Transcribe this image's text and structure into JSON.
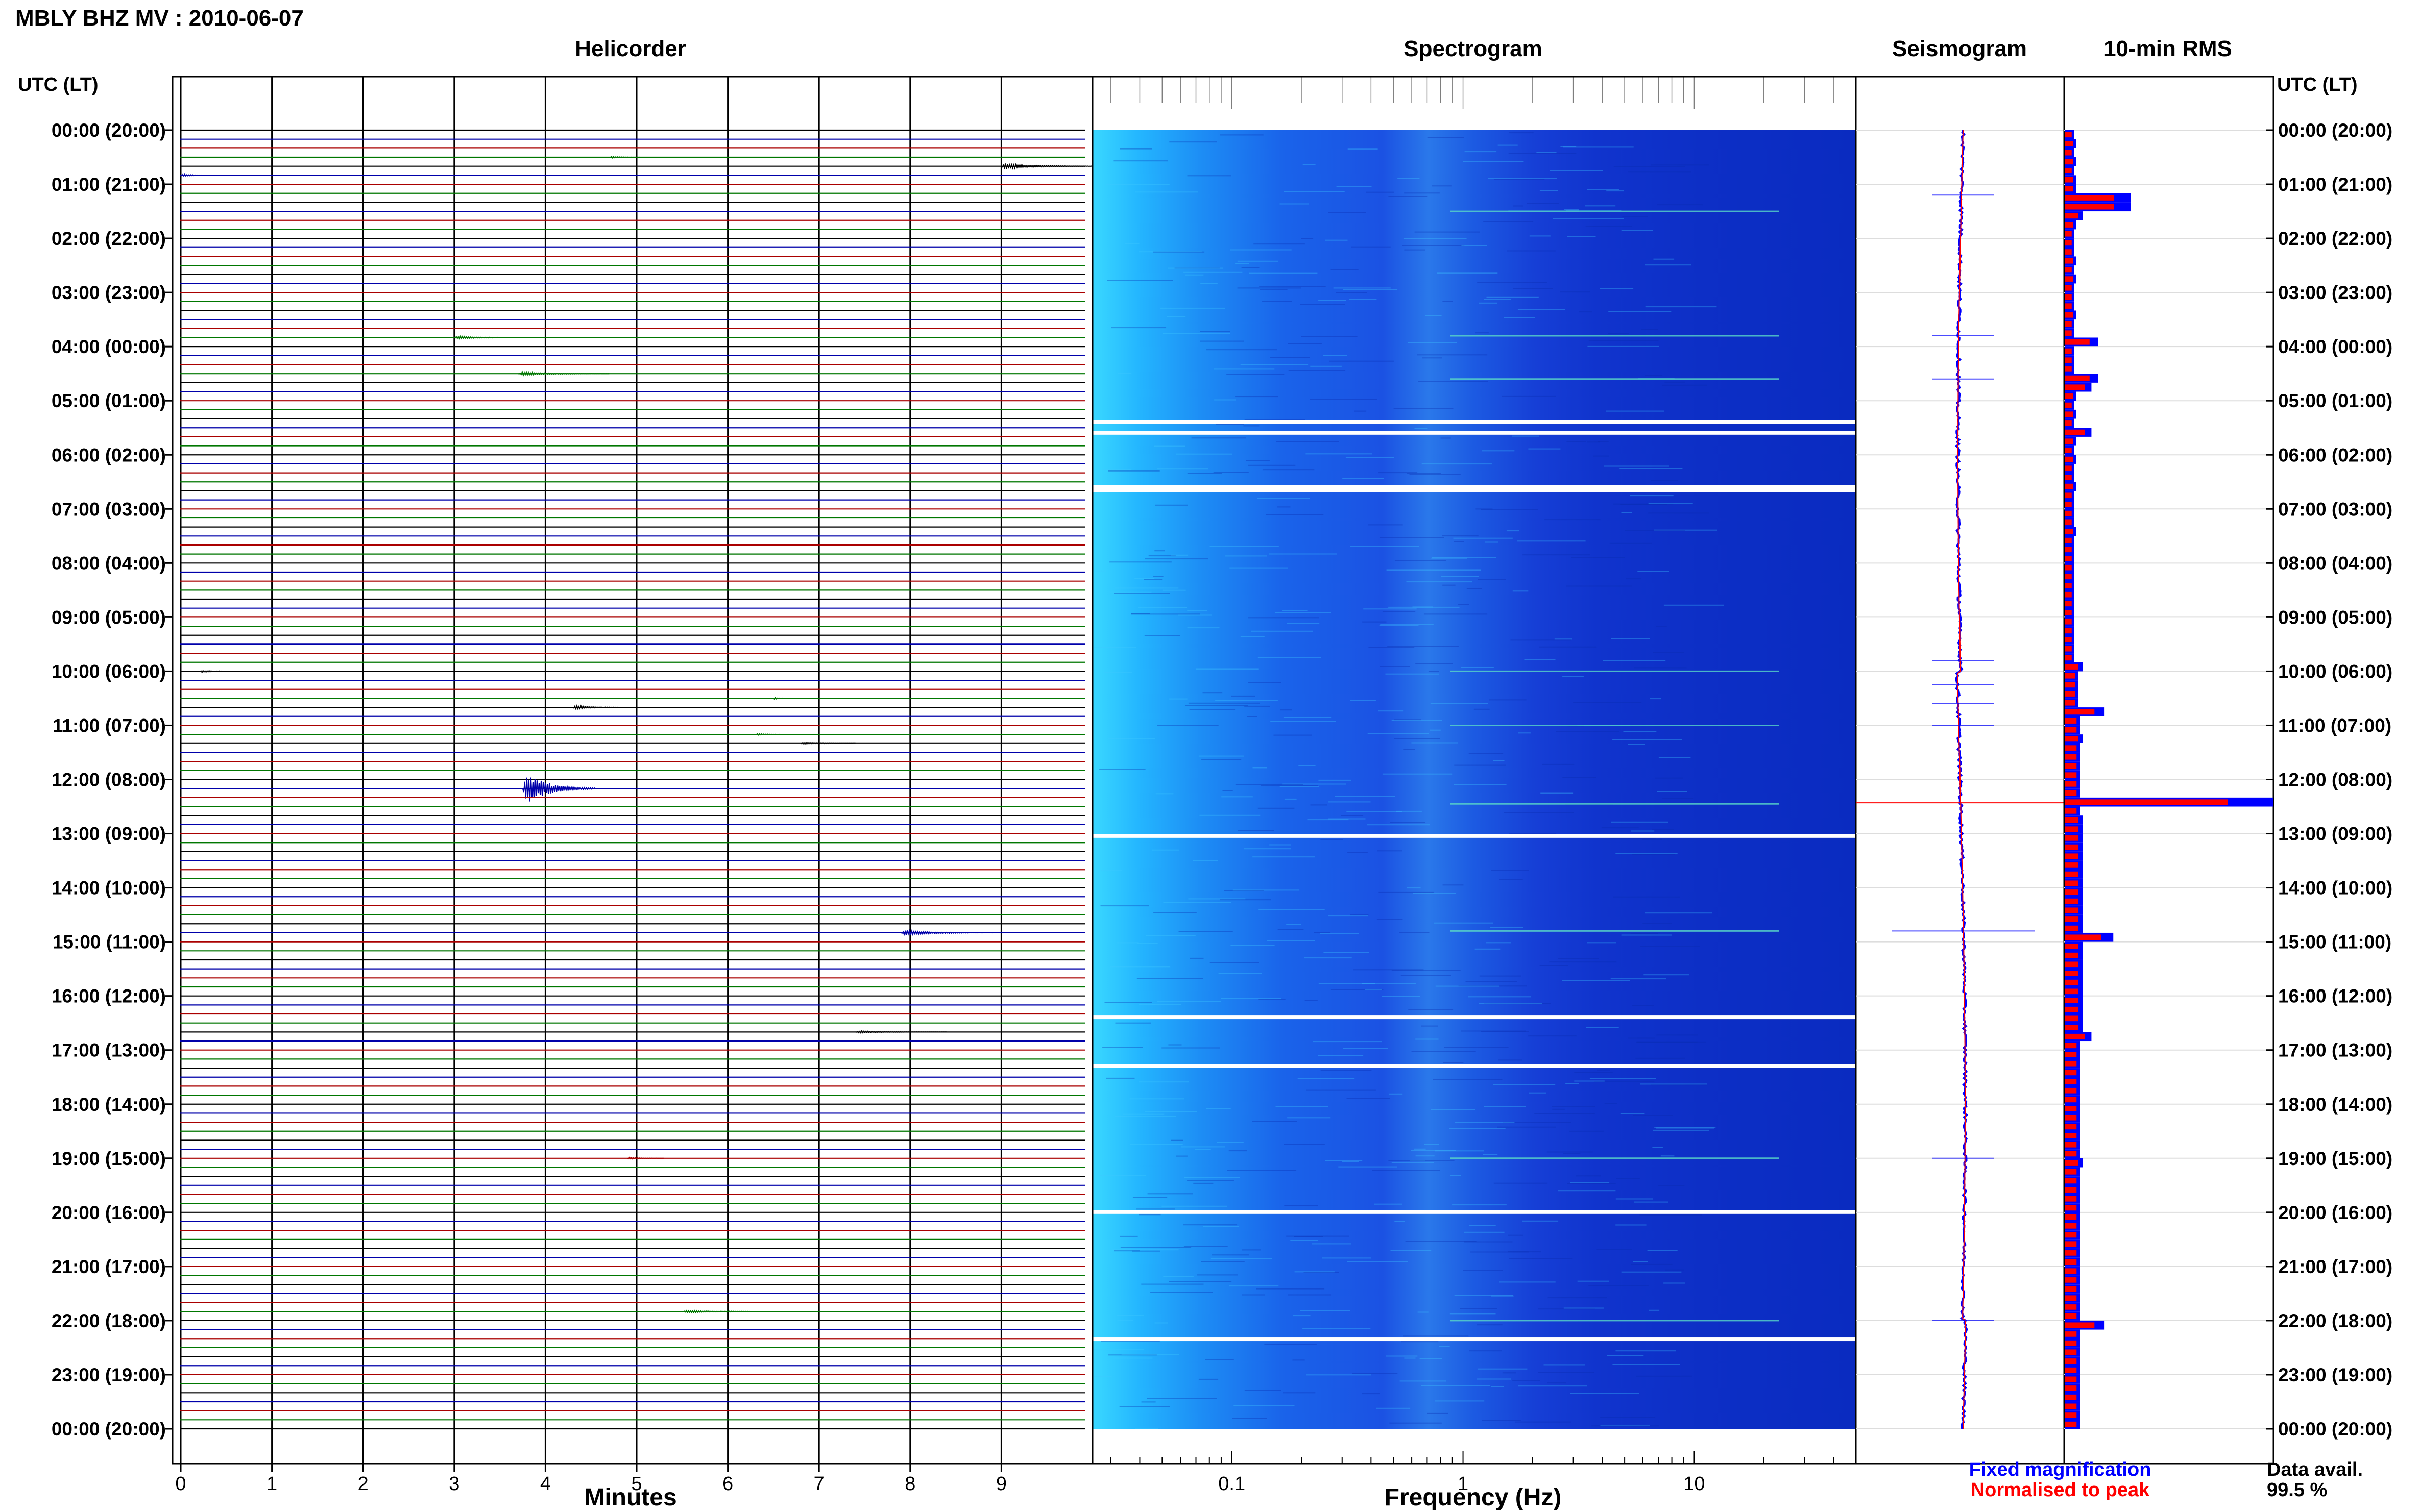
{
  "header": {
    "title": "MBLY BHZ MV : 2010-06-07"
  },
  "panels": {
    "helicorder_title": "Helicorder",
    "spectrogram_title": "Spectrogram",
    "seismogram_title": "Seismogram",
    "rms_title": "10-min RMS",
    "left_axis_header": "UTC (LT)",
    "right_axis_header": "UTC (LT)",
    "helicorder_xlabel": "Minutes",
    "spectrogram_xlabel": "Frequency (Hz)"
  },
  "legend": {
    "fixed": "Fixed magnification",
    "normalised": "Normalised to peak",
    "fixed_color": "#0000ff",
    "normalised_color": "#ff0000"
  },
  "availability": {
    "label": "Data avail.",
    "value": "99.5 %"
  },
  "chart_data": [
    {
      "type": "line",
      "name": "helicorder",
      "title": "Helicorder",
      "xlabel": "Minutes",
      "xlim": [
        0,
        10
      ],
      "x_ticks": [
        "0",
        "1",
        "2",
        "3",
        "4",
        "5",
        "6",
        "7",
        "8",
        "9"
      ],
      "y_ticks": [
        "00:00 (20:00)",
        "01:00 (21:00)",
        "02:00 (22:00)",
        "03:00 (23:00)",
        "04:00 (00:00)",
        "05:00 (01:00)",
        "06:00 (02:00)",
        "07:00 (03:00)",
        "08:00 (04:00)",
        "09:00 (05:00)",
        "10:00 (06:00)",
        "11:00 (07:00)",
        "12:00 (08:00)",
        "13:00 (09:00)",
        "14:00 (10:00)",
        "15:00 (11:00)",
        "16:00 (12:00)",
        "17:00 (13:00)",
        "18:00 (14:00)",
        "19:00 (15:00)",
        "20:00 (16:00)",
        "21:00 (17:00)",
        "22:00 (18:00)",
        "23:00 (19:00)",
        "00:00 (20:00)"
      ],
      "trace_colors": [
        "#000000",
        "#0000aa",
        "#aa0000",
        "#007700"
      ],
      "lines_per_hour": 6,
      "hours": 24,
      "events": [
        {
          "line": 3,
          "minute": 4.7,
          "duration": 0.4,
          "amp": 0.3
        },
        {
          "line": 5,
          "minute": 0.0,
          "duration": 0.5,
          "amp": 0.4
        },
        {
          "line": 4,
          "minute": 9.0,
          "duration": 1.0,
          "amp": 1.2
        },
        {
          "line": 23,
          "minute": 3.0,
          "duration": 0.8,
          "amp": 0.6
        },
        {
          "line": 27,
          "minute": 3.7,
          "duration": 1.0,
          "amp": 0.7
        },
        {
          "line": 60,
          "minute": 0.2,
          "duration": 0.6,
          "amp": 0.4
        },
        {
          "line": 63,
          "minute": 6.5,
          "duration": 0.2,
          "amp": 0.4
        },
        {
          "line": 64,
          "minute": 4.3,
          "duration": 0.6,
          "amp": 0.8
        },
        {
          "line": 67,
          "minute": 6.3,
          "duration": 0.5,
          "amp": 0.3
        },
        {
          "line": 68,
          "minute": 6.8,
          "duration": 0.6,
          "amp": 0.3
        },
        {
          "line": 73,
          "minute": 3.75,
          "duration": 0.8,
          "amp": 6.0
        },
        {
          "line": 89,
          "minute": 7.9,
          "duration": 1.0,
          "amp": 1.0
        },
        {
          "line": 100,
          "minute": 7.4,
          "duration": 1.0,
          "amp": 0.4
        },
        {
          "line": 114,
          "minute": 4.9,
          "duration": 0.4,
          "amp": 0.4
        },
        {
          "line": 131,
          "minute": 5.5,
          "duration": 1.3,
          "amp": 0.5
        }
      ]
    },
    {
      "type": "heatmap",
      "name": "spectrogram",
      "title": "Spectrogram",
      "xlabel": "Frequency (Hz)",
      "x_scale": "log",
      "xlim": [
        0.025,
        50
      ],
      "x_ticks": [
        "0.1",
        "1",
        "10"
      ],
      "gap_hours": [
        5.4,
        5.6,
        6.6,
        13.05,
        16.4,
        17.3,
        20.0,
        22.35
      ]
    },
    {
      "type": "line",
      "name": "seismogram",
      "title": "Seismogram",
      "spikes_hours": [
        1.2,
        3.8,
        4.6,
        9.8,
        10.25,
        10.6,
        11.0,
        12.43,
        14.8,
        19.0,
        22.0
      ]
    },
    {
      "type": "bar",
      "name": "rms",
      "title": "10-min RMS",
      "series": [
        {
          "name": "Fixed magnification",
          "color": "#0000ff"
        },
        {
          "name": "Normalised to peak",
          "color": "#ff0000"
        }
      ],
      "values_relative": [
        0.04,
        0.05,
        0.04,
        0.05,
        0.04,
        0.05,
        0.05,
        0.06,
        0.3,
        0.08,
        0.05,
        0.04,
        0.04,
        0.04,
        0.05,
        0.04,
        0.05,
        0.04,
        0.04,
        0.04,
        0.05,
        0.04,
        0.04,
        0.04,
        0.04,
        0.04,
        0.04,
        0.04,
        0.12,
        0.05,
        0.04,
        0.05,
        0.04,
        0.12,
        0.05,
        0.04,
        0.05,
        0.04,
        0.04,
        0.05,
        0.04,
        0.04,
        0.04,
        0.04,
        0.05,
        0.04,
        0.04,
        0.04,
        0.04,
        0.04,
        0.04,
        0.04,
        0.04,
        0.04,
        0.04,
        0.04,
        0.04,
        0.04,
        0.04,
        0.04,
        0.06,
        0.06,
        0.06,
        0.06,
        0.06,
        0.07,
        0.07,
        0.07,
        0.07,
        0.07,
        0.07,
        0.07,
        0.07,
        0.07,
        0.07,
        0.07,
        0.08,
        0.08,
        0.08,
        0.08,
        0.08,
        0.08,
        0.08,
        0.08,
        0.08,
        0.08,
        0.08,
        0.08,
        0.08,
        0.08,
        0.08,
        0.08,
        0.08,
        0.08,
        0.08,
        0.08,
        0.08,
        0.08,
        0.08,
        0.08,
        0.07,
        0.07,
        0.07,
        0.07,
        0.07,
        0.07,
        0.07,
        0.07,
        0.07,
        0.07,
        0.07,
        0.07,
        0.07,
        0.07,
        0.07,
        0.07,
        0.07,
        0.07,
        0.07,
        0.07,
        0.07,
        0.07,
        0.07,
        0.07,
        0.07,
        0.07,
        0.07,
        0.07,
        0.07,
        0.07,
        0.07,
        0.07,
        0.07,
        0.07,
        0.07,
        0.07,
        0.07,
        0.07,
        0.07,
        0.07,
        0.07,
        0.07,
        0.07,
        0.07
      ],
      "peaks": [
        {
          "bin": 7,
          "value": 0.3
        },
        {
          "bin": 23,
          "value": 0.15
        },
        {
          "bin": 27,
          "value": 0.15
        },
        {
          "bin": 59,
          "value": 0.08
        },
        {
          "bin": 61,
          "value": 0.06
        },
        {
          "bin": 64,
          "value": 0.18
        },
        {
          "bin": 67,
          "value": 0.08
        },
        {
          "bin": 74,
          "value": 1.0
        },
        {
          "bin": 89,
          "value": 0.22
        },
        {
          "bin": 100,
          "value": 0.12
        },
        {
          "bin": 114,
          "value": 0.08
        },
        {
          "bin": 132,
          "value": 0.18
        }
      ]
    }
  ]
}
